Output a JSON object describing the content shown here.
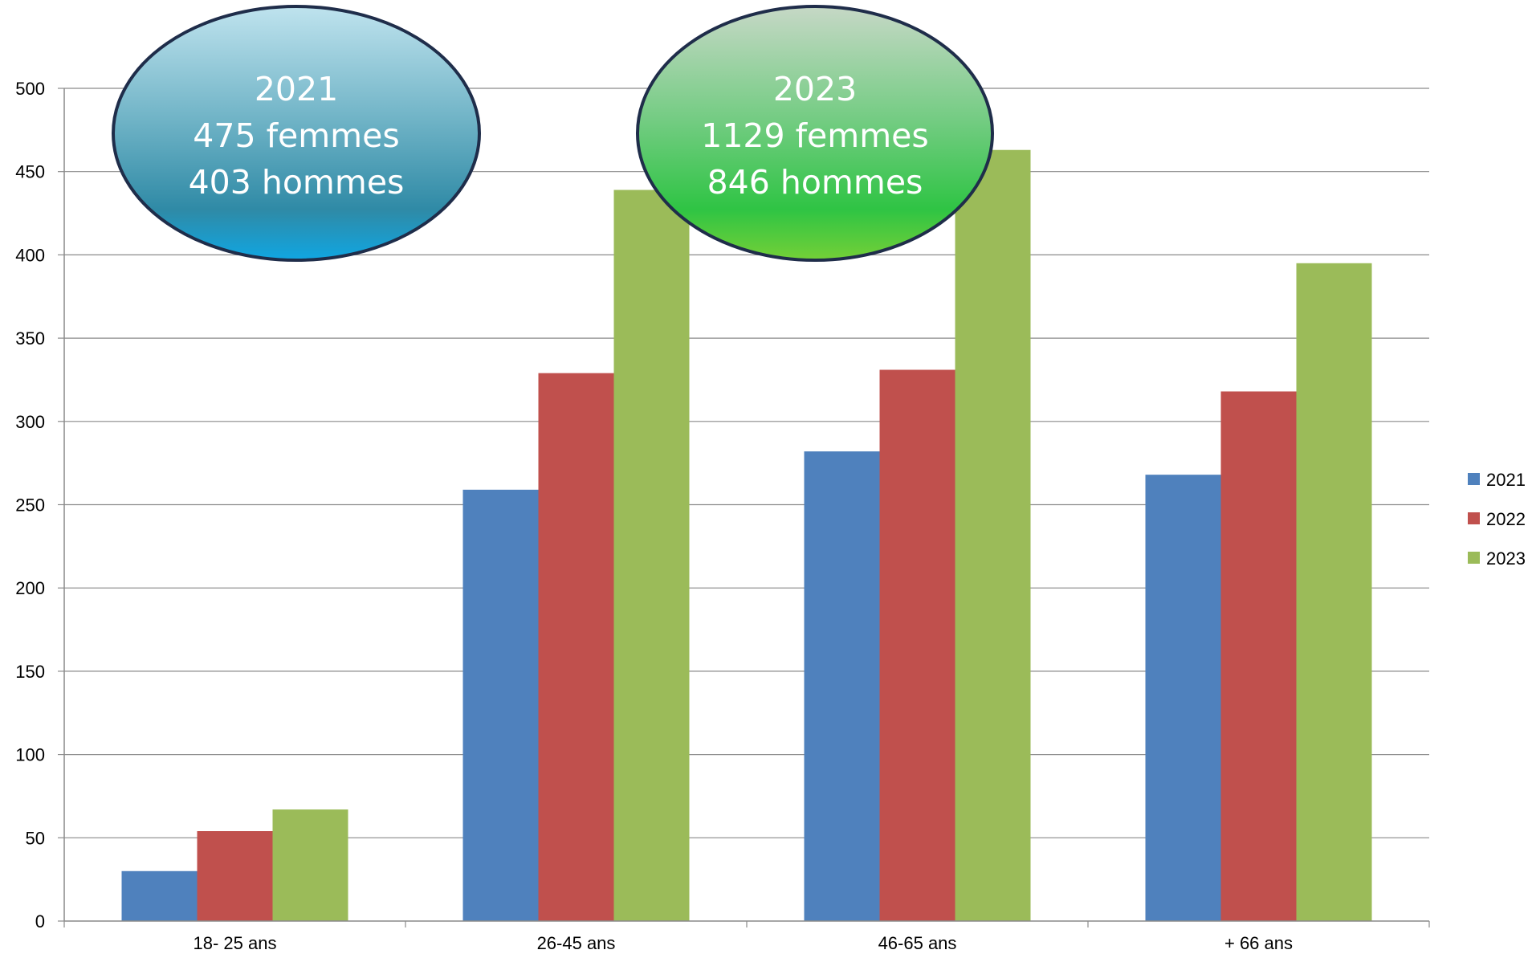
{
  "chart_data": {
    "type": "bar",
    "title": "",
    "xlabel": "",
    "ylabel": "",
    "categories": [
      "18- 25 ans",
      "26-45 ans",
      "46-65 ans",
      "+ 66 ans"
    ],
    "series": [
      {
        "name": "2021",
        "color": "#4F81BD",
        "values": [
          30,
          259,
          282,
          268
        ]
      },
      {
        "name": "2022",
        "color": "#C0504D",
        "values": [
          54,
          329,
          331,
          318
        ]
      },
      {
        "name": "2023",
        "color": "#9BBB59",
        "values": [
          67,
          439,
          463,
          395
        ]
      }
    ],
    "ylim": [
      0,
      500
    ],
    "yticks": [
      0,
      50,
      100,
      150,
      200,
      250,
      300,
      350,
      400,
      450,
      500
    ],
    "grid": true,
    "legend_position": "right",
    "annotations": [
      {
        "lines": [
          "2021",
          "475 femmes",
          "403 hommes"
        ],
        "style": "blue-bubble"
      },
      {
        "lines": [
          "2023",
          "1129 femmes",
          "846 hommes"
        ],
        "style": "green-bubble"
      }
    ]
  }
}
